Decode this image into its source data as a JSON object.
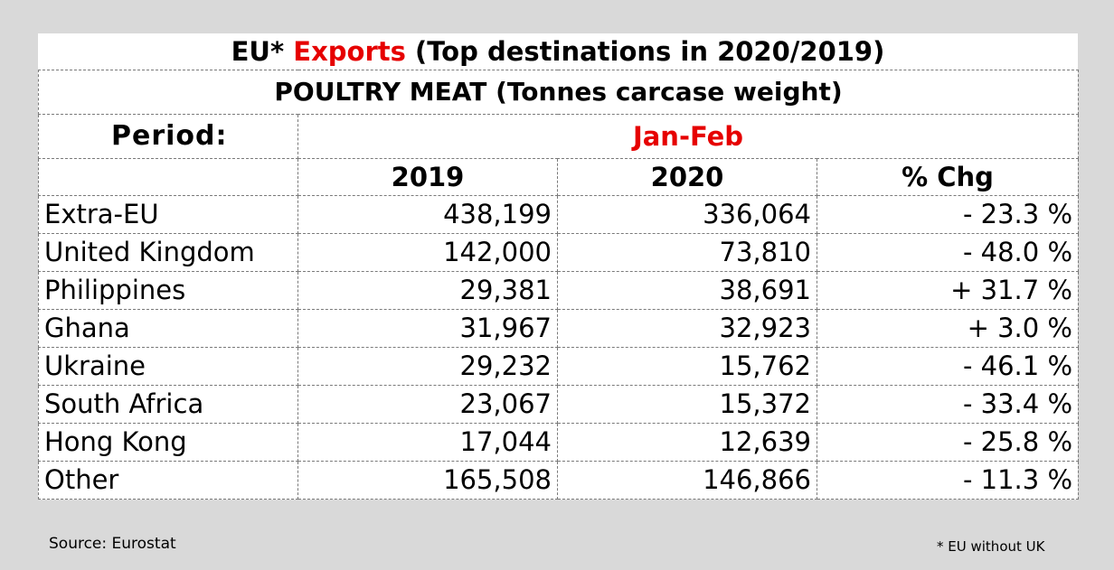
{
  "title": {
    "prefix": "EU*",
    "highlight": "Exports",
    "suffix": "(Top destinations in 2020/2019)"
  },
  "subtitle": "POULTRY MEAT (Tonnes carcase weight)",
  "period": {
    "label": "Period:",
    "value": "Jan-Feb"
  },
  "columns": [
    "",
    "2019",
    "2020",
    "% Chg"
  ],
  "rows": [
    {
      "destination": "Extra-EU",
      "y2019": "438,199",
      "y2020": "336,064",
      "chg": "- 23.3 %"
    },
    {
      "destination": "United Kingdom",
      "y2019": "142,000",
      "y2020": "73,810",
      "chg": "- 48.0 %"
    },
    {
      "destination": "Philippines",
      "y2019": "29,381",
      "y2020": "38,691",
      "chg": "+ 31.7 %"
    },
    {
      "destination": "Ghana",
      "y2019": "31,967",
      "y2020": "32,923",
      "chg": "+ 3.0 %"
    },
    {
      "destination": "Ukraine",
      "y2019": "29,232",
      "y2020": "15,762",
      "chg": "- 46.1 %"
    },
    {
      "destination": "South Africa",
      "y2019": "23,067",
      "y2020": "15,372",
      "chg": "- 33.4 %"
    },
    {
      "destination": "Hong Kong",
      "y2019": "17,044",
      "y2020": "12,639",
      "chg": "- 25.8 %"
    },
    {
      "destination": "Other",
      "y2019": "165,508",
      "y2020": "146,866",
      "chg": "- 11.3 %"
    }
  ],
  "footer": {
    "source": "Source: Eurostat",
    "note": "* EU without UK"
  },
  "colors": {
    "highlight": "#e60000",
    "background": "#d9d9d9",
    "sheet": "#ffffff"
  }
}
